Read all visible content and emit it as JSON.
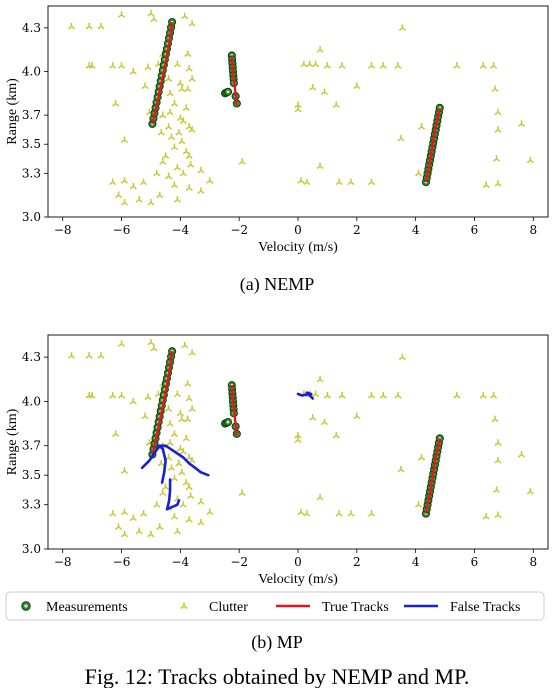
{
  "figure_caption": "Fig. 12: Tracks obtained by NEMP and MP.",
  "legend": {
    "items": [
      {
        "key": "measurements",
        "label": "Measurements"
      },
      {
        "key": "clutter",
        "label": "Clutter"
      },
      {
        "key": "true",
        "label": "True Tracks"
      },
      {
        "key": "false",
        "label": "False Tracks"
      }
    ]
  },
  "colors": {
    "measure_fill": "#2e8b2e",
    "measure_ring": "#2e8b2e",
    "clutter": "#c8c832",
    "true_track": "#e8161b",
    "false_track": "#1520d8"
  },
  "chart_data": [
    {
      "type": "scatter",
      "caption": "(a) NEMP",
      "xlabel": "Velocity (m/s)",
      "ylabel": "Range (km)",
      "xlim": [
        -8.5,
        8.5
      ],
      "ylim": [
        3.0,
        4.45
      ],
      "xticks": [
        -8,
        -6,
        -4,
        -2,
        0,
        2,
        4,
        6,
        8
      ],
      "yticks": [
        3.0,
        3.3,
        3.5,
        3.7,
        4.0,
        4.3
      ],
      "ytick_labels": [
        "3.0",
        "3.3",
        "3.5",
        "3.7",
        "4.0",
        "4.3"
      ],
      "true_tracks": [
        [
          [
            -4.95,
            3.64
          ],
          [
            -4.75,
            3.82
          ],
          [
            -4.55,
            4.02
          ],
          [
            -4.4,
            4.18
          ],
          [
            -4.28,
            4.34
          ]
        ],
        [
          [
            -2.25,
            4.11
          ],
          [
            -2.2,
            3.98
          ],
          [
            -2.08,
            3.77
          ]
        ],
        [
          [
            4.35,
            3.24
          ],
          [
            4.5,
            3.4
          ],
          [
            4.65,
            3.58
          ],
          [
            4.82,
            3.75
          ]
        ]
      ],
      "measurement_tracks": [
        {
          "from": [
            -4.95,
            3.64
          ],
          "to": [
            -4.28,
            4.34
          ],
          "n": 20
        },
        {
          "from": [
            -2.25,
            4.11
          ],
          "to": [
            -2.18,
            3.92
          ],
          "n": 8
        },
        {
          "from": [
            -2.48,
            3.85
          ],
          "to": [
            -2.38,
            3.86
          ],
          "n": 3
        },
        {
          "from": [
            -2.12,
            3.83
          ],
          "to": [
            -2.08,
            3.78
          ],
          "n": 2
        },
        {
          "from": [
            4.35,
            3.24
          ],
          "to": [
            4.82,
            3.75
          ],
          "n": 18
        }
      ],
      "false_tracks": [],
      "clutter": [
        [
          -7.7,
          4.31
        ],
        [
          -7.1,
          4.31
        ],
        [
          -6.7,
          4.31
        ],
        [
          -6.0,
          4.39
        ],
        [
          -5.0,
          4.4
        ],
        [
          -4.9,
          4.36
        ],
        [
          -3.85,
          4.38
        ],
        [
          -3.6,
          4.33
        ],
        [
          -7.1,
          4.04
        ],
        [
          -7.0,
          4.04
        ],
        [
          -6.3,
          4.04
        ],
        [
          -6.0,
          4.04
        ],
        [
          -5.6,
          4.0
        ],
        [
          -5.1,
          4.03
        ],
        [
          -4.75,
          4.05
        ],
        [
          -4.1,
          4.05
        ],
        [
          -3.7,
          4.02
        ],
        [
          -6.2,
          3.78
        ],
        [
          -5.2,
          3.9
        ],
        [
          -4.0,
          3.92
        ],
        [
          -3.75,
          3.88
        ],
        [
          -3.8,
          3.75
        ],
        [
          -4.2,
          3.78
        ],
        [
          -5.05,
          3.72
        ],
        [
          -4.6,
          3.7
        ],
        [
          -4.35,
          3.72
        ],
        [
          -4.0,
          3.68
        ],
        [
          -3.9,
          3.66
        ],
        [
          -4.4,
          3.62
        ],
        [
          -3.7,
          3.62
        ],
        [
          -4.65,
          3.58
        ],
        [
          -4.3,
          3.55
        ],
        [
          -4.05,
          3.58
        ],
        [
          -3.6,
          3.6
        ],
        [
          -3.95,
          3.52
        ],
        [
          -5.9,
          3.53
        ],
        [
          -4.2,
          3.48
        ],
        [
          -4.5,
          3.42
        ],
        [
          -3.8,
          3.45
        ],
        [
          -4.6,
          3.38
        ],
        [
          -3.65,
          3.36
        ],
        [
          -4.1,
          3.34
        ],
        [
          -3.9,
          3.3
        ],
        [
          -3.3,
          3.32
        ],
        [
          -4.8,
          3.3
        ],
        [
          -4.4,
          3.28
        ],
        [
          -4.2,
          3.22
        ],
        [
          -3.7,
          3.2
        ],
        [
          -4.7,
          3.15
        ],
        [
          -4.1,
          3.12
        ],
        [
          -3.3,
          3.18
        ],
        [
          -6.3,
          3.24
        ],
        [
          -5.9,
          3.25
        ],
        [
          -5.6,
          3.21
        ],
        [
          -5.25,
          3.24
        ],
        [
          -6.1,
          3.15
        ],
        [
          -5.9,
          3.1
        ],
        [
          -5.4,
          3.12
        ],
        [
          -5.0,
          3.1
        ],
        [
          -3.0,
          3.25
        ],
        [
          -4.4,
          3.95
        ],
        [
          -3.95,
          3.88
        ],
        [
          -3.6,
          3.95
        ],
        [
          -4.6,
          4.12
        ],
        [
          -3.75,
          4.12
        ],
        [
          -4.35,
          3.85
        ],
        [
          -3.7,
          3.42
        ],
        [
          0.2,
          4.05
        ],
        [
          0.4,
          4.05
        ],
        [
          0.6,
          4.05
        ],
        [
          0.75,
          4.15
        ],
        [
          1.0,
          4.04
        ],
        [
          1.5,
          4.04
        ],
        [
          2.5,
          4.04
        ],
        [
          2.9,
          4.04
        ],
        [
          3.4,
          4.04
        ],
        [
          3.55,
          4.3
        ],
        [
          0.0,
          3.77
        ],
        [
          0.0,
          3.74
        ],
        [
          0.9,
          3.86
        ],
        [
          1.3,
          3.77
        ],
        [
          2.0,
          3.9
        ],
        [
          0.5,
          3.89
        ],
        [
          5.4,
          4.04
        ],
        [
          6.3,
          4.04
        ],
        [
          6.65,
          4.04
        ],
        [
          6.7,
          3.88
        ],
        [
          7.6,
          3.64
        ],
        [
          6.8,
          3.72
        ],
        [
          6.8,
          3.6
        ],
        [
          4.2,
          3.62
        ],
        [
          4.1,
          3.3
        ],
        [
          6.75,
          3.4
        ],
        [
          7.9,
          3.39
        ],
        [
          6.8,
          3.23
        ],
        [
          6.4,
          3.22
        ],
        [
          0.1,
          3.25
        ],
        [
          0.3,
          3.24
        ],
        [
          0.75,
          3.35
        ],
        [
          1.4,
          3.24
        ],
        [
          1.8,
          3.24
        ],
        [
          2.5,
          3.24
        ],
        [
          3.5,
          3.54
        ],
        [
          -1.9,
          3.38
        ]
      ]
    },
    {
      "type": "scatter",
      "caption": "(b) MP",
      "xlabel": "Velocity (m/s)",
      "ylabel": "Range (km)",
      "xlim": [
        -8.5,
        8.5
      ],
      "ylim": [
        3.0,
        4.45
      ],
      "xticks": [
        -8,
        -6,
        -4,
        -2,
        0,
        2,
        4,
        6,
        8
      ],
      "yticks": [
        3.0,
        3.3,
        3.5,
        3.7,
        4.0,
        4.3
      ],
      "ytick_labels": [
        "3.0",
        "3.3",
        "3.5",
        "3.7",
        "4.0",
        "4.3"
      ],
      "true_tracks": [
        [
          [
            -4.95,
            3.64
          ],
          [
            -4.75,
            3.82
          ],
          [
            -4.55,
            4.02
          ],
          [
            -4.4,
            4.18
          ],
          [
            -4.28,
            4.34
          ]
        ],
        [
          [
            -2.25,
            4.11
          ],
          [
            -2.2,
            3.98
          ],
          [
            -2.08,
            3.77
          ]
        ],
        [
          [
            4.35,
            3.24
          ],
          [
            4.5,
            3.4
          ],
          [
            4.65,
            3.58
          ],
          [
            4.82,
            3.75
          ]
        ]
      ],
      "measurement_tracks": [
        {
          "from": [
            -4.95,
            3.64
          ],
          "to": [
            -4.28,
            4.34
          ],
          "n": 20
        },
        {
          "from": [
            -2.25,
            4.11
          ],
          "to": [
            -2.18,
            3.92
          ],
          "n": 8
        },
        {
          "from": [
            -2.48,
            3.85
          ],
          "to": [
            -2.38,
            3.86
          ],
          "n": 3
        },
        {
          "from": [
            -2.12,
            3.83
          ],
          "to": [
            -2.08,
            3.78
          ],
          "n": 2
        },
        {
          "from": [
            4.35,
            3.24
          ],
          "to": [
            4.82,
            3.75
          ],
          "n": 18
        }
      ],
      "false_tracks": [
        [
          [
            -5.3,
            3.55
          ],
          [
            -5.05,
            3.6
          ],
          [
            -4.85,
            3.66
          ],
          [
            -4.7,
            3.7
          ],
          [
            -4.5,
            3.7
          ],
          [
            -4.2,
            3.66
          ],
          [
            -3.9,
            3.62
          ],
          [
            -3.7,
            3.58
          ],
          [
            -3.5,
            3.55
          ],
          [
            -3.3,
            3.52
          ],
          [
            -3.05,
            3.5
          ]
        ],
        [
          [
            -4.75,
            3.7
          ],
          [
            -4.6,
            3.68
          ],
          [
            -4.5,
            3.6
          ],
          [
            -4.55,
            3.52
          ],
          [
            -4.62,
            3.45
          ]
        ],
        [
          [
            -4.35,
            3.47
          ],
          [
            -4.35,
            3.4
          ],
          [
            -4.38,
            3.33
          ],
          [
            -4.45,
            3.27
          ],
          [
            -4.1,
            3.3
          ],
          [
            -4.05,
            3.33
          ]
        ],
        [
          [
            0.0,
            4.05
          ],
          [
            0.15,
            4.04
          ],
          [
            0.35,
            4.05
          ],
          [
            0.5,
            4.02
          ],
          [
            0.3,
            4.06
          ],
          [
            0.45,
            4.05
          ]
        ]
      ],
      "clutter": [
        [
          -7.7,
          4.31
        ],
        [
          -7.1,
          4.31
        ],
        [
          -6.7,
          4.31
        ],
        [
          -6.0,
          4.39
        ],
        [
          -5.0,
          4.4
        ],
        [
          -4.9,
          4.36
        ],
        [
          -3.85,
          4.38
        ],
        [
          -3.6,
          4.33
        ],
        [
          -7.1,
          4.04
        ],
        [
          -7.0,
          4.04
        ],
        [
          -6.3,
          4.04
        ],
        [
          -6.0,
          4.04
        ],
        [
          -5.6,
          4.0
        ],
        [
          -5.1,
          4.03
        ],
        [
          -4.75,
          4.05
        ],
        [
          -4.1,
          4.05
        ],
        [
          -3.7,
          4.02
        ],
        [
          -6.2,
          3.78
        ],
        [
          -5.2,
          3.9
        ],
        [
          -4.0,
          3.92
        ],
        [
          -3.75,
          3.88
        ],
        [
          -3.8,
          3.75
        ],
        [
          -4.2,
          3.78
        ],
        [
          -5.05,
          3.72
        ],
        [
          -4.6,
          3.7
        ],
        [
          -4.35,
          3.72
        ],
        [
          -4.0,
          3.68
        ],
        [
          -3.9,
          3.66
        ],
        [
          -4.4,
          3.62
        ],
        [
          -3.7,
          3.62
        ],
        [
          -4.65,
          3.58
        ],
        [
          -4.3,
          3.55
        ],
        [
          -4.05,
          3.58
        ],
        [
          -3.6,
          3.6
        ],
        [
          -3.95,
          3.52
        ],
        [
          -5.9,
          3.53
        ],
        [
          -4.2,
          3.48
        ],
        [
          -4.5,
          3.42
        ],
        [
          -3.8,
          3.45
        ],
        [
          -4.6,
          3.38
        ],
        [
          -3.65,
          3.36
        ],
        [
          -4.1,
          3.34
        ],
        [
          -3.9,
          3.3
        ],
        [
          -3.3,
          3.32
        ],
        [
          -4.8,
          3.3
        ],
        [
          -4.4,
          3.28
        ],
        [
          -4.2,
          3.22
        ],
        [
          -3.7,
          3.2
        ],
        [
          -4.7,
          3.15
        ],
        [
          -4.1,
          3.12
        ],
        [
          -3.3,
          3.18
        ],
        [
          -6.3,
          3.24
        ],
        [
          -5.9,
          3.25
        ],
        [
          -5.6,
          3.21
        ],
        [
          -5.25,
          3.24
        ],
        [
          -6.1,
          3.15
        ],
        [
          -5.9,
          3.1
        ],
        [
          -5.4,
          3.12
        ],
        [
          -5.0,
          3.1
        ],
        [
          -3.0,
          3.25
        ],
        [
          -4.4,
          3.95
        ],
        [
          -3.95,
          3.88
        ],
        [
          -3.6,
          3.95
        ],
        [
          -4.6,
          4.12
        ],
        [
          -3.75,
          4.12
        ],
        [
          -4.35,
          3.85
        ],
        [
          -3.7,
          3.42
        ],
        [
          0.2,
          4.05
        ],
        [
          0.4,
          4.05
        ],
        [
          0.6,
          4.05
        ],
        [
          0.75,
          4.15
        ],
        [
          1.0,
          4.04
        ],
        [
          1.5,
          4.04
        ],
        [
          2.5,
          4.04
        ],
        [
          2.9,
          4.04
        ],
        [
          3.4,
          4.04
        ],
        [
          3.55,
          4.3
        ],
        [
          0.0,
          3.77
        ],
        [
          0.0,
          3.74
        ],
        [
          0.9,
          3.86
        ],
        [
          1.3,
          3.77
        ],
        [
          2.0,
          3.9
        ],
        [
          0.5,
          3.89
        ],
        [
          5.4,
          4.04
        ],
        [
          6.3,
          4.04
        ],
        [
          6.65,
          4.04
        ],
        [
          6.7,
          3.88
        ],
        [
          7.6,
          3.64
        ],
        [
          6.8,
          3.72
        ],
        [
          6.8,
          3.6
        ],
        [
          4.2,
          3.62
        ],
        [
          4.1,
          3.3
        ],
        [
          6.75,
          3.4
        ],
        [
          7.9,
          3.39
        ],
        [
          6.8,
          3.23
        ],
        [
          6.4,
          3.22
        ],
        [
          0.1,
          3.25
        ],
        [
          0.3,
          3.24
        ],
        [
          0.75,
          3.35
        ],
        [
          1.4,
          3.24
        ],
        [
          1.8,
          3.24
        ],
        [
          2.5,
          3.24
        ],
        [
          3.5,
          3.54
        ],
        [
          -1.9,
          3.38
        ]
      ]
    }
  ]
}
